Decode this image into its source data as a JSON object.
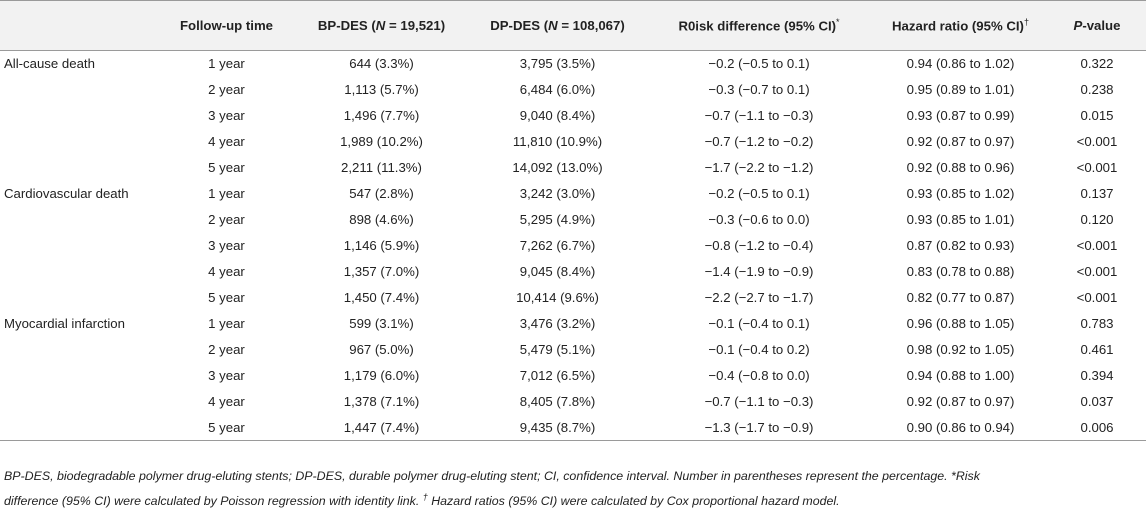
{
  "header": {
    "col0": "",
    "followup": "Follow-up time",
    "bp_prefix": "BP-DES (",
    "bp_n": "N",
    "bp_suffix": " = 19,521)",
    "dp_prefix": "DP-DES (",
    "dp_n": "N",
    "dp_suffix": " = 108,067)",
    "risk": "R0isk difference (95% CI)",
    "risk_mark": "*",
    "hazard": "Hazard ratio (95% CI)",
    "hazard_mark": "†",
    "p_italic": "P",
    "p_suffix": "-value"
  },
  "rows": [
    {
      "group": "All-cause death",
      "time": "1 year",
      "bp": "644 (3.3%)",
      "dp": "3,795 (3.5%)",
      "risk": "−0.2 (−0.5 to 0.1)",
      "hazard": "0.94 (0.86 to 1.02)",
      "p": "0.322"
    },
    {
      "group": "",
      "time": "2 year",
      "bp": "1,113 (5.7%)",
      "dp": "6,484 (6.0%)",
      "risk": "−0.3 (−0.7 to 0.1)",
      "hazard": "0.95 (0.89 to 1.01)",
      "p": "0.238"
    },
    {
      "group": "",
      "time": "3 year",
      "bp": "1,496 (7.7%)",
      "dp": "9,040 (8.4%)",
      "risk": "−0.7 (−1.1 to −0.3)",
      "hazard": "0.93 (0.87 to 0.99)",
      "p": "0.015"
    },
    {
      "group": "",
      "time": "4 year",
      "bp": "1,989 (10.2%)",
      "dp": "11,810 (10.9%)",
      "risk": "−0.7 (−1.2 to −0.2)",
      "hazard": "0.92 (0.87 to 0.97)",
      "p": "<0.001"
    },
    {
      "group": "",
      "time": "5 year",
      "bp": "2,211 (11.3%)",
      "dp": "14,092 (13.0%)",
      "risk": "−1.7 (−2.2 to −1.2)",
      "hazard": "0.92 (0.88 to 0.96)",
      "p": "<0.001"
    },
    {
      "group": "Cardiovascular death",
      "time": "1 year",
      "bp": "547 (2.8%)",
      "dp": "3,242 (3.0%)",
      "risk": "−0.2 (−0.5 to 0.1)",
      "hazard": "0.93 (0.85 to 1.02)",
      "p": "0.137"
    },
    {
      "group": "",
      "time": "2 year",
      "bp": "898 (4.6%)",
      "dp": "5,295 (4.9%)",
      "risk": "−0.3 (−0.6 to 0.0)",
      "hazard": "0.93 (0.85 to 1.01)",
      "p": "0.120"
    },
    {
      "group": "",
      "time": "3 year",
      "bp": "1,146 (5.9%)",
      "dp": "7,262 (6.7%)",
      "risk": "−0.8 (−1.2 to −0.4)",
      "hazard": "0.87 (0.82 to 0.93)",
      "p": "<0.001"
    },
    {
      "group": "",
      "time": "4 year",
      "bp": "1,357 (7.0%)",
      "dp": "9,045 (8.4%)",
      "risk": "−1.4 (−1.9 to −0.9)",
      "hazard": "0.83 (0.78 to 0.88)",
      "p": "<0.001"
    },
    {
      "group": "",
      "time": "5 year",
      "bp": "1,450 (7.4%)",
      "dp": "10,414 (9.6%)",
      "risk": "−2.2 (−2.7 to −1.7)",
      "hazard": "0.82 (0.77 to 0.87)",
      "p": "<0.001"
    },
    {
      "group": "Myocardial infarction",
      "time": "1 year",
      "bp": "599 (3.1%)",
      "dp": "3,476 (3.2%)",
      "risk": "−0.1 (−0.4 to 0.1)",
      "hazard": "0.96 (0.88 to 1.05)",
      "p": "0.783"
    },
    {
      "group": "",
      "time": "2 year",
      "bp": "967 (5.0%)",
      "dp": "5,479 (5.1%)",
      "risk": "−0.1 (−0.4 to 0.2)",
      "hazard": "0.98 (0.92 to 1.05)",
      "p": "0.461"
    },
    {
      "group": "",
      "time": "3 year",
      "bp": "1,179 (6.0%)",
      "dp": "7,012 (6.5%)",
      "risk": "−0.4 (−0.8 to 0.0)",
      "hazard": "0.94 (0.88 to 1.00)",
      "p": "0.394"
    },
    {
      "group": "",
      "time": "4 year",
      "bp": "1,378 (7.1%)",
      "dp": "8,405 (7.8%)",
      "risk": "−0.7 (−1.1 to −0.3)",
      "hazard": "0.92 (0.87 to 0.97)",
      "p": "0.037"
    },
    {
      "group": "",
      "time": "5 year",
      "bp": "1,447 (7.4%)",
      "dp": "9,435 (8.7%)",
      "risk": "−1.3 (−1.7 to −0.9)",
      "hazard": "0.90 (0.86 to 0.94)",
      "p": "0.006"
    }
  ],
  "footnote": {
    "line1": "BP-DES, biodegradable polymer drug-eluting stents; DP-DES, durable polymer drug-eluting stent; CI, confidence interval. Number in parentheses represent the percentage. *Risk",
    "line2a": "difference (95% CI) were calculated by Poisson regression with identity link.",
    "dagger": "†",
    "line2b": " Hazard ratios (95% CI) were calculated by Cox proportional hazard model."
  }
}
